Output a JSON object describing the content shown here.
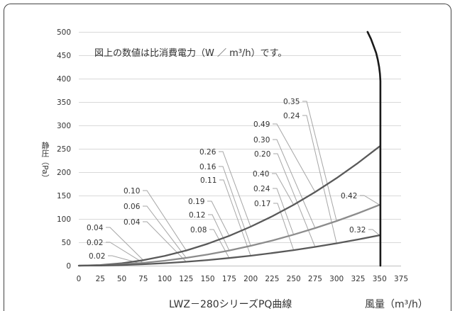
{
  "chart_data": {
    "type": "line",
    "title": "LWZ－280シリーズPQ曲線",
    "xlabel": "風量（m³/h）",
    "ylabel": "静圧（Pa）",
    "annotation": "図上の数値は比消費電力（W ／ m³/h）です。",
    "xlim": [
      0,
      375
    ],
    "ylim": [
      0,
      500
    ],
    "xticks": [
      0,
      25,
      50,
      75,
      100,
      125,
      150,
      175,
      200,
      225,
      250,
      275,
      300,
      325,
      350,
      375
    ],
    "yticks": [
      0,
      50,
      100,
      150,
      200,
      250,
      300,
      350,
      400,
      450,
      500
    ],
    "grid": "horizontal",
    "series": [
      {
        "color": "#1a1a1a",
        "x": [
          336,
          340,
          343,
          346,
          348,
          349.5,
          350.5,
          351,
          351
        ],
        "y": [
          500,
          485,
          470,
          455,
          440,
          425,
          410,
          395,
          0
        ]
      },
      {
        "color": "#595959",
        "x": [
          0,
          25,
          50,
          75,
          100,
          125,
          150,
          175,
          200,
          225,
          250,
          275,
          300,
          325,
          350
        ],
        "y": [
          0,
          1.3,
          5.2,
          11.7,
          20.8,
          32.5,
          46.8,
          63.8,
          83.3,
          105.4,
          130.1,
          157.4,
          187.3,
          219.9,
          255.0
        ]
      },
      {
        "color": "#8c8c8c",
        "x": [
          0,
          25,
          50,
          75,
          100,
          125,
          150,
          175,
          200,
          225,
          250,
          275,
          300,
          325,
          350
        ],
        "y": [
          0,
          0.7,
          2.7,
          6.0,
          10.6,
          16.6,
          23.9,
          32.5,
          42.4,
          53.7,
          66.3,
          80.3,
          95.5,
          112.1,
          130.0
        ]
      },
      {
        "color": "#595959",
        "x": [
          0,
          25,
          50,
          75,
          100,
          125,
          150,
          175,
          200,
          225,
          250,
          275,
          300,
          325,
          350
        ],
        "y": [
          0,
          0.3,
          1.3,
          3.0,
          5.3,
          8.3,
          11.9,
          16.3,
          21.2,
          26.9,
          33.2,
          40.1,
          47.8,
          56.1,
          65.0
        ]
      }
    ],
    "point_labels": [
      {
        "text": "0.04",
        "x": 75,
        "y": 11.7
      },
      {
        "text": "0.02",
        "x": 75,
        "y": 6.0
      },
      {
        "text": "0.02",
        "x": 75,
        "y": 3.0
      },
      {
        "text": "0.10",
        "x": 125,
        "y": 32.5
      },
      {
        "text": "0.06",
        "x": 125,
        "y": 16.6
      },
      {
        "text": "0.04",
        "x": 125,
        "y": 8.3
      },
      {
        "text": "0.19",
        "x": 175,
        "y": 63.8
      },
      {
        "text": "0.12",
        "x": 175,
        "y": 32.5
      },
      {
        "text": "0.08",
        "x": 175,
        "y": 16.3
      },
      {
        "text": "0.26",
        "x": 200,
        "y": 83.3
      },
      {
        "text": "0.16",
        "x": 200,
        "y": 42.4
      },
      {
        "text": "0.11",
        "x": 200,
        "y": 21.2
      },
      {
        "text": "0.49",
        "x": 275,
        "y": 157.4
      },
      {
        "text": "0.30",
        "x": 275,
        "y": 80.3
      },
      {
        "text": "0.20",
        "x": 275,
        "y": 40.1
      },
      {
        "text": "0.40",
        "x": 250,
        "y": 130.1
      },
      {
        "text": "0.24",
        "x": 250,
        "y": 66.3
      },
      {
        "text": "0.17",
        "x": 250,
        "y": 33.2
      },
      {
        "text": "0.35",
        "x": 300,
        "y": 95.5
      },
      {
        "text": "0.24",
        "x": 300,
        "y": 47.8
      },
      {
        "text": "0.42",
        "x": 350,
        "y": 130.0
      },
      {
        "text": "0.32",
        "x": 350,
        "y": 65.0
      }
    ]
  },
  "colors": {
    "frame": "#444444",
    "grid": "#d9d9d9",
    "axis": "#bfbfbf",
    "leader": "#a6a6a6",
    "text": "#333333"
  }
}
